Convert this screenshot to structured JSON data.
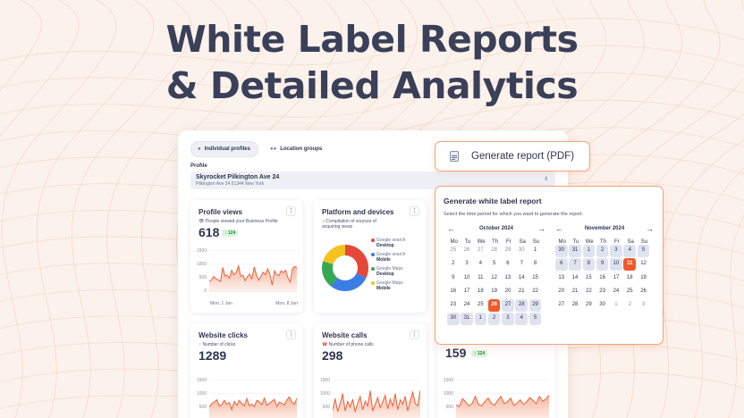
{
  "hero": {
    "line1": "White Label Reports",
    "line2": "& Detailed Analytics"
  },
  "tabs": [
    {
      "label": "Individual profiles",
      "icon": "user-icon"
    },
    {
      "label": "Location groups",
      "icon": "users-icon"
    }
  ],
  "profile": {
    "label": "Profile",
    "name": "Skyrocket Pilkington Ave 24",
    "address": "Pilkington Ave 24 51344 New York"
  },
  "cards": {
    "profile_views": {
      "title": "Profile views",
      "subtitle": "People viewed your Business Profile",
      "value": "618",
      "badge": "124",
      "y_ticks": [
        "1500",
        "1000",
        "500",
        "0"
      ],
      "x_start": "Mon, 1 Jan",
      "x_end": "Mon, 8 Jan",
      "series": [
        380,
        420,
        560,
        470,
        430,
        380,
        880,
        570,
        600,
        500,
        780,
        620,
        700,
        930,
        560,
        610,
        410,
        560,
        640,
        470,
        900,
        610,
        420,
        560,
        710,
        620,
        830,
        640,
        250,
        760,
        620,
        590,
        760,
        700,
        780,
        520,
        360,
        840,
        910,
        880
      ]
    },
    "platform": {
      "title": "Platform and devices",
      "subtitle_line1": "Compilation of sources of",
      "subtitle_line2": "acquiring views",
      "legend": [
        {
          "source": "Google search",
          "device": "Desktop",
          "color": "#e5483b"
        },
        {
          "source": "Google search",
          "device": "Mobile",
          "color": "#3b7de5"
        },
        {
          "source": "Google Maps",
          "device": "Desktop",
          "color": "#34a853"
        },
        {
          "source": "Google Maps",
          "device": "Mobile",
          "color": "#f5c220"
        }
      ]
    },
    "website_clicks": {
      "title": "Website clicks",
      "subtitle": "Number of clicks",
      "value": "1289",
      "y_ticks": [
        "1500",
        "1000",
        "500",
        "0"
      ],
      "series": [
        520,
        640,
        700,
        780,
        560,
        600,
        760,
        620,
        680,
        430,
        720,
        580,
        760,
        640,
        560,
        820,
        570,
        620,
        540,
        760,
        710,
        600,
        840,
        580,
        650,
        720,
        790,
        540,
        700,
        660,
        590,
        780,
        880,
        700,
        620,
        840
      ]
    },
    "website_calls": {
      "title": "Website calls",
      "subtitle": "Number of phone calls",
      "value": "298",
      "y_ticks": [
        "1500",
        "1000",
        "500",
        "0"
      ],
      "series": [
        410,
        820,
        360,
        640,
        1000,
        380,
        720,
        520,
        800,
        340,
        660,
        900,
        420,
        730,
        560,
        1100,
        380,
        620,
        860,
        500,
        700,
        940,
        460,
        800,
        560,
        1000,
        420,
        780,
        620,
        900,
        380,
        760,
        1050,
        640,
        560,
        1120
      ]
    },
    "third": {
      "value": "159",
      "badge": "124",
      "series": [
        600,
        540,
        820,
        700,
        560,
        640,
        900,
        620,
        560,
        720,
        840,
        660,
        580,
        760,
        900,
        640,
        700,
        840,
        580,
        660,
        780,
        620,
        700,
        860,
        760,
        640,
        900,
        720,
        800,
        940
      ]
    }
  },
  "generate_button": {
    "label": "Generate report (PDF)",
    "icon": "document-icon"
  },
  "modal": {
    "title": "Generate white label report",
    "description": "Select the time period for which you want to generate the report.",
    "weekdays": [
      "Mo",
      "Tu",
      "We",
      "Th",
      "Fr",
      "Sa",
      "Su"
    ],
    "calendars": [
      {
        "month": "October 2024",
        "days": [
          {
            "d": "25",
            "m": true
          },
          {
            "d": "26",
            "m": true
          },
          {
            "d": "27",
            "m": true
          },
          {
            "d": "28",
            "m": true
          },
          {
            "d": "29",
            "m": true
          },
          {
            "d": "30",
            "m": true
          },
          {
            "d": "1"
          },
          {
            "d": "2"
          },
          {
            "d": "3"
          },
          {
            "d": "4"
          },
          {
            "d": "5"
          },
          {
            "d": "6"
          },
          {
            "d": "7"
          },
          {
            "d": "8"
          },
          {
            "d": "9"
          },
          {
            "d": "10"
          },
          {
            "d": "11"
          },
          {
            "d": "12"
          },
          {
            "d": "13"
          },
          {
            "d": "14"
          },
          {
            "d": "15"
          },
          {
            "d": "16"
          },
          {
            "d": "17"
          },
          {
            "d": "18"
          },
          {
            "d": "19"
          },
          {
            "d": "20"
          },
          {
            "d": "21"
          },
          {
            "d": "22"
          },
          {
            "d": "23"
          },
          {
            "d": "24"
          },
          {
            "d": "25"
          },
          {
            "d": "26",
            "s": true
          },
          {
            "d": "27",
            "r": true
          },
          {
            "d": "28",
            "r": true
          },
          {
            "d": "29",
            "r": true
          },
          {
            "d": "30",
            "r": true
          },
          {
            "d": "31",
            "r": true
          },
          {
            "d": "1",
            "r": true
          },
          {
            "d": "2",
            "r": true
          },
          {
            "d": "3",
            "r": true
          },
          {
            "d": "4",
            "r": true
          },
          {
            "d": "5",
            "r": true
          }
        ]
      },
      {
        "month": "November 2024",
        "days": [
          {
            "d": "30",
            "r": true
          },
          {
            "d": "31",
            "r": true
          },
          {
            "d": "1",
            "r": true
          },
          {
            "d": "2",
            "r": true
          },
          {
            "d": "3",
            "r": true
          },
          {
            "d": "4",
            "r": true
          },
          {
            "d": "5",
            "r": true
          },
          {
            "d": "6",
            "r": true
          },
          {
            "d": "7",
            "r": true
          },
          {
            "d": "8",
            "r": true
          },
          {
            "d": "9",
            "r": true
          },
          {
            "d": "10",
            "r": true
          },
          {
            "d": "11",
            "s": true
          },
          {
            "d": "12"
          },
          {
            "d": "13"
          },
          {
            "d": "14"
          },
          {
            "d": "15"
          },
          {
            "d": "16"
          },
          {
            "d": "17"
          },
          {
            "d": "18"
          },
          {
            "d": "19"
          },
          {
            "d": "20"
          },
          {
            "d": "21"
          },
          {
            "d": "22"
          },
          {
            "d": "23"
          },
          {
            "d": "24"
          },
          {
            "d": "25"
          },
          {
            "d": "26"
          },
          {
            "d": "27"
          },
          {
            "d": "28"
          },
          {
            "d": "29"
          },
          {
            "d": "30"
          },
          {
            "d": "1",
            "m": true
          },
          {
            "d": "2",
            "m": true
          },
          {
            "d": "3",
            "m": true
          }
        ]
      }
    ]
  },
  "colors": {
    "accent": "#ef5a2b",
    "chart_line": "#e8623a",
    "chart_fill": "#f6b39a",
    "title_text": "#3a4058",
    "background": "#fcf2ec"
  }
}
